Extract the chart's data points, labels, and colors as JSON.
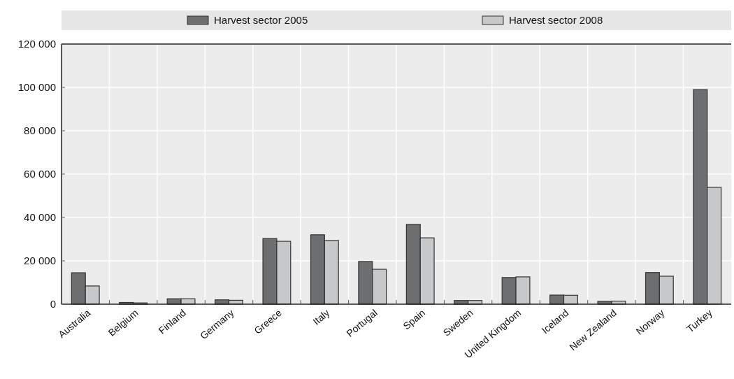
{
  "chart_data": {
    "type": "bar",
    "categories": [
      "Australia",
      "Belgium",
      "Finland",
      "Germany",
      "Greece",
      "Italy",
      "Portugal",
      "Spain",
      "Sweden",
      "United Kingdom",
      "Iceland",
      "New Zealand",
      "Norway",
      "Turkey"
    ],
    "series": [
      {
        "name": "Harvest sector 2005",
        "color": "#6d6e70",
        "values": [
          14500,
          800,
          2500,
          2000,
          30300,
          32000,
          19700,
          36800,
          1700,
          12300,
          4200,
          1300,
          14600,
          99000
        ]
      },
      {
        "name": "Harvest sector 2008",
        "color": "#c7c8ca",
        "values": [
          8400,
          600,
          2500,
          1800,
          29000,
          29400,
          16100,
          30600,
          1700,
          12600,
          4100,
          1400,
          12900,
          53900
        ]
      }
    ],
    "ylim": [
      0,
      120000
    ],
    "yticks": [
      {
        "value": 0,
        "label": "0"
      },
      {
        "value": 20000,
        "label": "20 000"
      },
      {
        "value": 40000,
        "label": "40 000"
      },
      {
        "value": 60000,
        "label": "60 000"
      },
      {
        "value": 80000,
        "label": "80 000"
      },
      {
        "value": 100000,
        "label": "100 000"
      },
      {
        "value": 120000,
        "label": "120 000"
      }
    ],
    "grid": true,
    "legend": "top"
  }
}
